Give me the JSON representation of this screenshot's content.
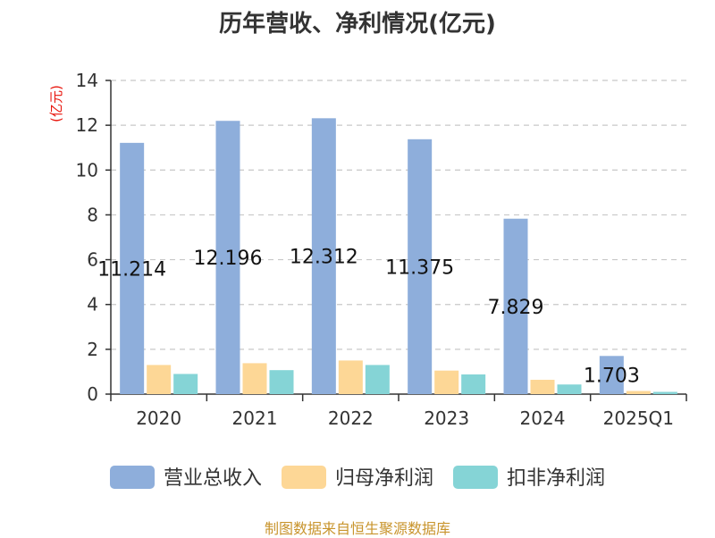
{
  "chart_data": {
    "type": "bar",
    "title": "历年营收、净利情况(亿元)",
    "ylabel": "(亿元)",
    "ylim": [
      0,
      14
    ],
    "yticks": [
      0,
      2,
      4,
      6,
      8,
      10,
      12,
      14
    ],
    "grid": true,
    "legend_position": "bottom",
    "categories": [
      "2020",
      "2021",
      "2022",
      "2023",
      "2024",
      "2025Q1"
    ],
    "series": [
      {
        "name": "营业总收入",
        "color": "#8eaedb",
        "values": [
          11.214,
          12.196,
          12.312,
          11.375,
          7.829,
          1.703
        ],
        "labels": [
          "11.214",
          "12.196",
          "12.312",
          "11.375",
          "7.829",
          "1.703"
        ]
      },
      {
        "name": "归母净利润",
        "color": "#fdd796",
        "values": [
          1.3,
          1.38,
          1.5,
          1.05,
          0.64,
          0.14
        ]
      },
      {
        "name": "扣非净利润",
        "color": "#85d4d6",
        "values": [
          0.9,
          1.07,
          1.3,
          0.88,
          0.43,
          0.1
        ]
      }
    ]
  },
  "source": "制图数据来自恒生聚源数据库"
}
